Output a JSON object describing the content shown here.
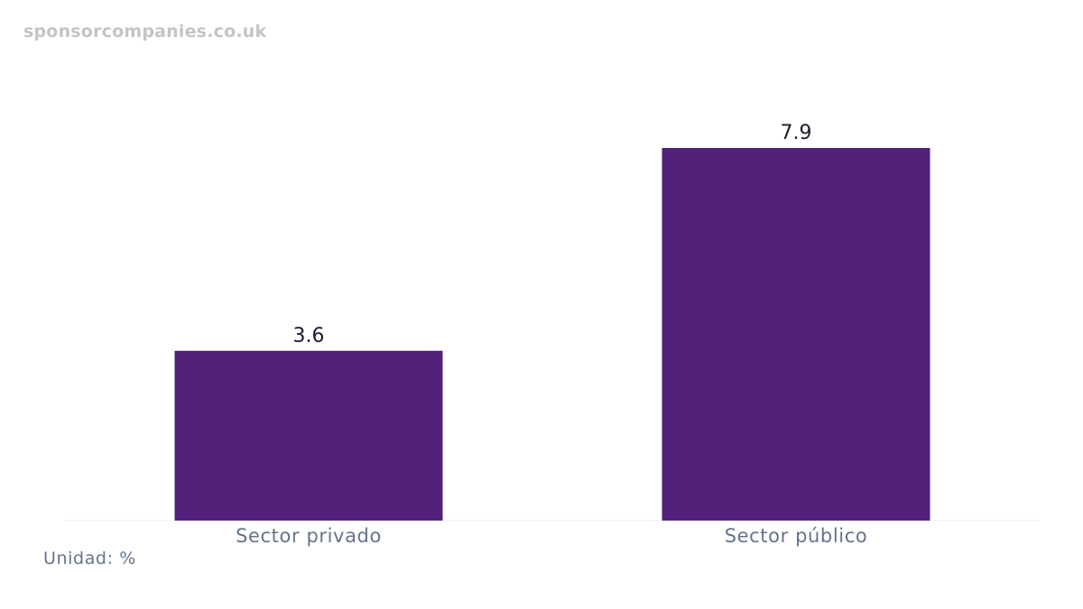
{
  "watermark": "sponsorcompanies.co.uk",
  "unit_note": "Unidad: %",
  "chart_data": {
    "type": "bar",
    "categories": [
      "Sector privado",
      "Sector público"
    ],
    "values": [
      3.6,
      7.9
    ],
    "value_labels": [
      "3.6",
      "7.9"
    ],
    "title": "",
    "xlabel": "",
    "ylabel": "",
    "ylim": [
      0,
      7.9
    ],
    "grid": false,
    "legend": "none",
    "bar_color": "#52217a",
    "baseline_color": "#f3f4f6"
  }
}
